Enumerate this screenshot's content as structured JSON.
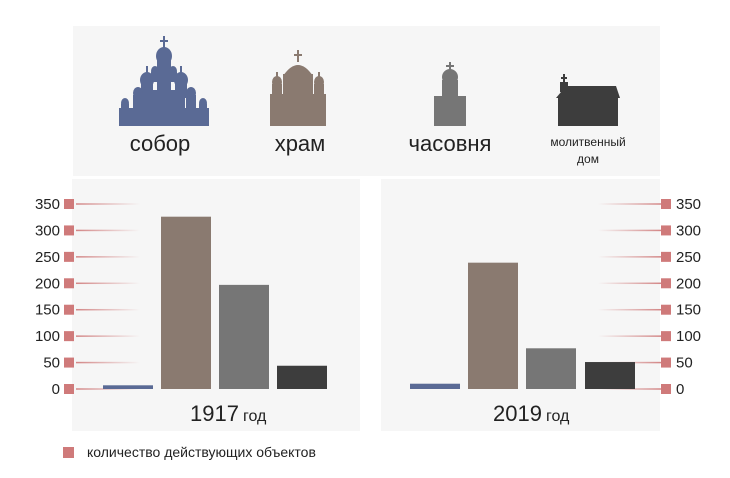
{
  "categories": [
    {
      "name": "собор",
      "color": "#5a6a95",
      "icon": "cathedral-icon"
    },
    {
      "name": "храм",
      "color": "#8a7a70",
      "icon": "church-icon"
    },
    {
      "name": "часовня",
      "color": "#767676",
      "icon": "chapel-icon"
    },
    {
      "name": "молитвенный\nдом",
      "color": "#3d3d3d",
      "icon": "prayer-house-icon"
    }
  ],
  "legend": {
    "label": "количество действующих объектов",
    "color": "#cf7a7a"
  },
  "chart_data": [
    {
      "type": "bar",
      "categories": [
        "собор",
        "храм",
        "часовня",
        "молитвенный дом"
      ],
      "values": [
        7,
        326,
        197,
        44
      ],
      "ylim": [
        0,
        350
      ],
      "yticks": [
        0,
        50,
        100,
        150,
        200,
        250,
        300,
        350
      ],
      "year": "1917",
      "year_unit": "год",
      "axis_side": "left"
    },
    {
      "type": "bar",
      "categories": [
        "собор",
        "храм",
        "часовня",
        "молитвенный дом"
      ],
      "values": [
        10,
        239,
        77,
        51
      ],
      "ylim": [
        0,
        350
      ],
      "yticks": [
        0,
        50,
        100,
        150,
        200,
        250,
        300,
        350
      ],
      "year": "2019",
      "year_unit": "год",
      "axis_side": "right"
    }
  ]
}
